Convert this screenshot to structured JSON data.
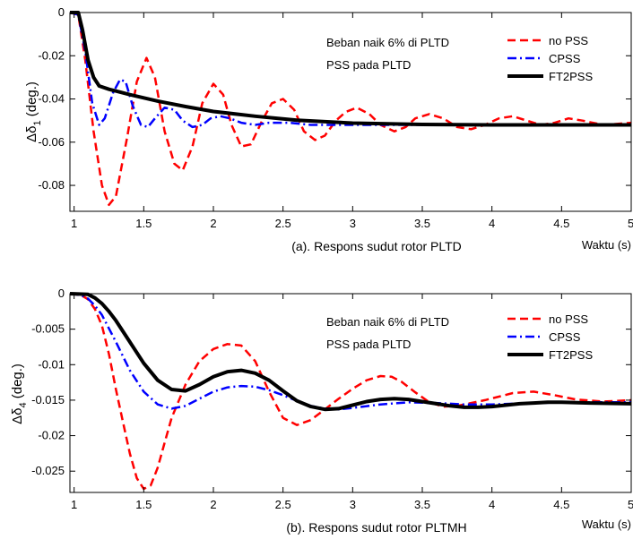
{
  "chart_data": [
    {
      "type": "line",
      "caption": "(a). Respons sudut rotor PLTD",
      "xlabel": "Waktu (s)",
      "ylabel_prefix": "Δδ",
      "ylabel_sub": "1",
      "ylabel_suffix": " (deg.)",
      "xlim": [
        0.97,
        5
      ],
      "ylim": [
        -0.092,
        0
      ],
      "xticks": [
        1,
        1.5,
        2,
        2.5,
        3,
        3.5,
        4,
        4.5,
        5
      ],
      "xtick_labels": [
        "1",
        "1.5",
        "2",
        "2.5",
        "3",
        "3.5",
        "4",
        "4.5",
        "5"
      ],
      "yticks": [
        0,
        -0.02,
        -0.04,
        -0.06,
        -0.08
      ],
      "ytick_labels": [
        "0",
        "-0.02",
        "-0.04",
        "-0.06",
        "-0.08"
      ],
      "annotation": [
        "Beban naik 6% di PLTD",
        "PSS pada PLTD"
      ],
      "legend_position": "top-right",
      "series": [
        {
          "name": "no PSS",
          "color": "#ff0000",
          "style": "dashed",
          "x": [
            0.97,
            1.03,
            1.08,
            1.14,
            1.2,
            1.25,
            1.3,
            1.38,
            1.45,
            1.52,
            1.58,
            1.65,
            1.72,
            1.78,
            1.85,
            1.92,
            2.0,
            2.07,
            2.13,
            2.2,
            2.27,
            2.35,
            2.42,
            2.5,
            2.58,
            2.65,
            2.73,
            2.8,
            2.88,
            2.95,
            3.03,
            3.12,
            3.2,
            3.3,
            3.38,
            3.45,
            3.55,
            3.65,
            3.75,
            3.85,
            3.95,
            4.05,
            4.15,
            4.25,
            4.35,
            4.45,
            4.55,
            4.65,
            4.8,
            5.0
          ],
          "y": [
            0,
            -0.001,
            -0.022,
            -0.055,
            -0.08,
            -0.089,
            -0.085,
            -0.058,
            -0.032,
            -0.021,
            -0.03,
            -0.055,
            -0.07,
            -0.073,
            -0.062,
            -0.042,
            -0.033,
            -0.038,
            -0.052,
            -0.062,
            -0.061,
            -0.05,
            -0.042,
            -0.04,
            -0.045,
            -0.055,
            -0.059,
            -0.057,
            -0.05,
            -0.046,
            -0.044,
            -0.047,
            -0.052,
            -0.055,
            -0.053,
            -0.049,
            -0.047,
            -0.049,
            -0.053,
            -0.054,
            -0.052,
            -0.049,
            -0.048,
            -0.05,
            -0.052,
            -0.051,
            -0.049,
            -0.05,
            -0.052,
            -0.051
          ]
        },
        {
          "name": "CPSS",
          "color": "#0000ff",
          "style": "dashdot",
          "x": [
            0.97,
            1.03,
            1.08,
            1.13,
            1.18,
            1.22,
            1.28,
            1.33,
            1.37,
            1.42,
            1.48,
            1.53,
            1.58,
            1.65,
            1.72,
            1.78,
            1.85,
            1.92,
            1.98,
            2.05,
            2.12,
            2.2,
            2.3,
            2.4,
            2.55,
            2.7,
            2.9,
            3.1,
            3.4,
            3.7,
            4.0,
            4.5,
            5.0
          ],
          "y": [
            0,
            -0.001,
            -0.018,
            -0.042,
            -0.052,
            -0.049,
            -0.037,
            -0.031,
            -0.032,
            -0.043,
            -0.052,
            -0.053,
            -0.049,
            -0.044,
            -0.045,
            -0.05,
            -0.053,
            -0.052,
            -0.049,
            -0.048,
            -0.049,
            -0.051,
            -0.052,
            -0.051,
            -0.051,
            -0.052,
            -0.052,
            -0.052,
            -0.052,
            -0.052,
            -0.052,
            -0.052,
            -0.052
          ]
        },
        {
          "name": "FT2PSS",
          "color": "#000000",
          "style": "solid",
          "x": [
            0.97,
            1.03,
            1.06,
            1.1,
            1.14,
            1.18,
            1.25,
            1.4,
            1.6,
            1.8,
            2.0,
            2.3,
            2.6,
            3.0,
            3.5,
            4.0,
            4.5,
            5.0
          ],
          "y": [
            0,
            0,
            -0.008,
            -0.022,
            -0.03,
            -0.034,
            -0.0355,
            -0.038,
            -0.041,
            -0.0435,
            -0.0458,
            -0.048,
            -0.0498,
            -0.0512,
            -0.0518,
            -0.052,
            -0.052,
            -0.052
          ]
        }
      ]
    },
    {
      "type": "line",
      "caption": "(b). Respons sudut rotor PLTMH",
      "xlabel": "Waktu (s)",
      "ylabel_prefix": "Δδ",
      "ylabel_sub": "4",
      "ylabel_suffix": " (deg.)",
      "xlim": [
        0.97,
        5
      ],
      "ylim": [
        -0.028,
        0
      ],
      "xticks": [
        1,
        1.5,
        2,
        2.5,
        3,
        3.5,
        4,
        4.5,
        5
      ],
      "xtick_labels": [
        "1",
        "1.5",
        "2",
        "2.5",
        "3",
        "3.5",
        "4",
        "4.5",
        "5"
      ],
      "yticks": [
        0,
        -0.005,
        -0.01,
        -0.015,
        -0.02,
        -0.025
      ],
      "ytick_labels": [
        "0",
        "-0.005",
        "-0.01",
        "-0.015",
        "-0.02",
        "-0.025"
      ],
      "annotation": [
        "Beban naik 6% di PLTD",
        "PSS pada PLTD"
      ],
      "legend_position": "top-right",
      "series": [
        {
          "name": "no PSS",
          "color": "#ff0000",
          "style": "dashed",
          "x": [
            0.97,
            1.05,
            1.1,
            1.15,
            1.2,
            1.25,
            1.3,
            1.35,
            1.4,
            1.45,
            1.5,
            1.55,
            1.6,
            1.65,
            1.7,
            1.8,
            1.9,
            2.0,
            2.1,
            2.2,
            2.3,
            2.4,
            2.5,
            2.6,
            2.7,
            2.8,
            2.9,
            3.0,
            3.1,
            3.2,
            3.28,
            3.35,
            3.45,
            3.55,
            3.65,
            3.75,
            3.85,
            3.95,
            4.05,
            4.15,
            4.3,
            4.45,
            4.6,
            4.8,
            5.0
          ],
          "y": [
            0,
            -0.0002,
            -0.0008,
            -0.0022,
            -0.0045,
            -0.0085,
            -0.0135,
            -0.018,
            -0.0225,
            -0.026,
            -0.0275,
            -0.027,
            -0.0245,
            -0.021,
            -0.0175,
            -0.0128,
            -0.0095,
            -0.0078,
            -0.0071,
            -0.0073,
            -0.0095,
            -0.0138,
            -0.0175,
            -0.0185,
            -0.0178,
            -0.0163,
            -0.0148,
            -0.0134,
            -0.0122,
            -0.0116,
            -0.0117,
            -0.0124,
            -0.0139,
            -0.0153,
            -0.0159,
            -0.0158,
            -0.0154,
            -0.015,
            -0.0145,
            -0.014,
            -0.0138,
            -0.0143,
            -0.0149,
            -0.0152,
            -0.015
          ]
        },
        {
          "name": "CPSS",
          "color": "#0000ff",
          "style": "dashdot",
          "x": [
            0.97,
            1.05,
            1.1,
            1.15,
            1.2,
            1.3,
            1.4,
            1.5,
            1.6,
            1.7,
            1.8,
            1.9,
            2.0,
            2.1,
            2.2,
            2.3,
            2.4,
            2.5,
            2.6,
            2.7,
            2.8,
            2.9,
            3.0,
            3.2,
            3.4,
            3.6,
            3.8,
            4.0,
            4.3,
            4.6,
            5.0
          ],
          "y": [
            0,
            -0.0002,
            -0.0007,
            -0.0017,
            -0.003,
            -0.0068,
            -0.0108,
            -0.0138,
            -0.0156,
            -0.0162,
            -0.0158,
            -0.0148,
            -0.0138,
            -0.0132,
            -0.013,
            -0.0131,
            -0.0136,
            -0.0143,
            -0.0151,
            -0.0158,
            -0.0162,
            -0.0163,
            -0.0161,
            -0.0156,
            -0.0153,
            -0.0154,
            -0.0156,
            -0.0156,
            -0.0154,
            -0.0153,
            -0.0153
          ]
        },
        {
          "name": "FT2PSS",
          "color": "#000000",
          "style": "solid",
          "x": [
            0.97,
            1.1,
            1.15,
            1.2,
            1.25,
            1.3,
            1.4,
            1.5,
            1.6,
            1.7,
            1.8,
            1.9,
            2.0,
            2.1,
            2.2,
            2.3,
            2.4,
            2.5,
            2.6,
            2.7,
            2.8,
            2.9,
            3.0,
            3.1,
            3.2,
            3.3,
            3.4,
            3.5,
            3.6,
            3.7,
            3.8,
            3.9,
            4.0,
            4.1,
            4.2,
            4.3,
            4.4,
            4.5,
            4.7,
            5.0
          ],
          "y": [
            0,
            -0.0001,
            -0.0006,
            -0.0014,
            -0.0025,
            -0.0038,
            -0.0068,
            -0.0098,
            -0.0122,
            -0.0135,
            -0.0137,
            -0.0128,
            -0.0117,
            -0.011,
            -0.0108,
            -0.0112,
            -0.0122,
            -0.0137,
            -0.0151,
            -0.0159,
            -0.0163,
            -0.0162,
            -0.0157,
            -0.0152,
            -0.0149,
            -0.0148,
            -0.0149,
            -0.0152,
            -0.0155,
            -0.0158,
            -0.016,
            -0.016,
            -0.0159,
            -0.0157,
            -0.0155,
            -0.0154,
            -0.0153,
            -0.0153,
            -0.0154,
            -0.0155
          ]
        }
      ]
    }
  ]
}
